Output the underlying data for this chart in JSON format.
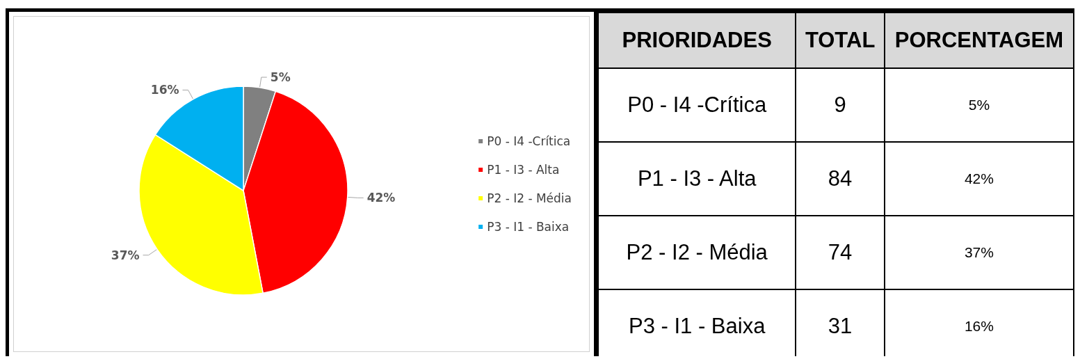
{
  "chart_data": [
    {
      "type": "pie",
      "categories": [
        "P0 - I4 -Crítica",
        "P1 - I3 - Alta",
        "P2 - I2 - Média",
        "P3 - I1 - Baixa"
      ],
      "values": [
        5,
        42,
        37,
        16
      ],
      "colors": [
        "#808080",
        "#ff0000",
        "#ffff00",
        "#00b0f0"
      ],
      "value_labels": [
        "5%",
        "42%",
        "37%",
        "16%"
      ],
      "legend": "right"
    },
    {
      "type": "other",
      "annotations": [
        "PRIORIDADES",
        "TOTAL",
        "PORCENTAGEM",
        "P0 - I4 -Crítica",
        "9",
        "5%",
        "P1 - I3 - Alta",
        "84",
        "42%",
        "P2 - I2 - Média",
        "74",
        "37%",
        "P3 - I1 - Baixa",
        "31",
        "16%"
      ]
    }
  ]
}
